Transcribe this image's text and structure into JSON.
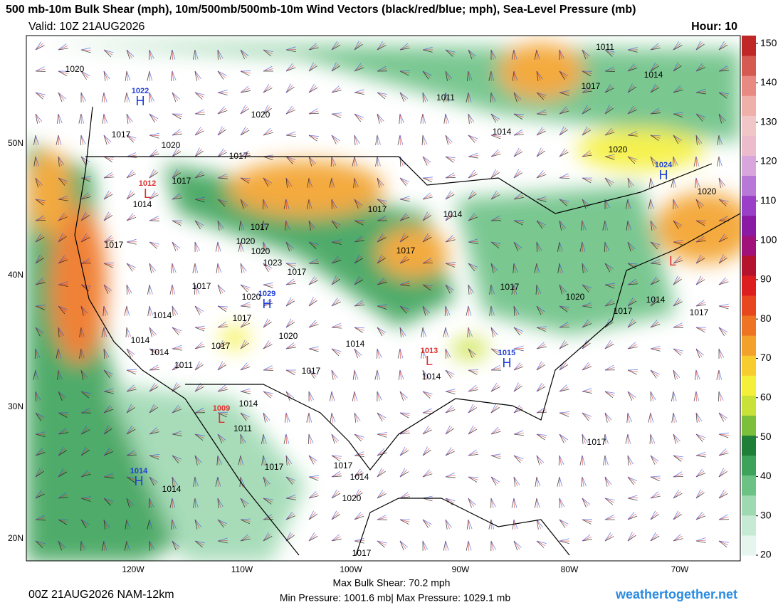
{
  "header": {
    "title": "500 mb-10m Bulk Shear (mph), 10m/500mb/500mb-10m Wind Vectors (black/red/blue; mph), Sea-Level Pressure (mb)",
    "valid": "Valid: 10Z 21AUG2026",
    "hour": "Hour: 10"
  },
  "map": {
    "lat_labels": [
      "50N",
      "40N",
      "30N",
      "20N"
    ],
    "lon_labels": [
      "120W",
      "110W",
      "100W",
      "90W",
      "80W",
      "70W"
    ],
    "centers": [
      {
        "type": "H",
        "value": "1022",
        "color": "#1f3fd8"
      },
      {
        "type": "L",
        "value": "1012",
        "color": "#e03030"
      },
      {
        "type": "H",
        "value": "1029",
        "color": "#1f3fd8"
      },
      {
        "type": "L",
        "value": "1013",
        "color": "#e03030"
      },
      {
        "type": "H",
        "value": "1015",
        "color": "#1f3fd8"
      },
      {
        "type": "L",
        "value": "1009",
        "color": "#e03030"
      },
      {
        "type": "H",
        "value": "1014",
        "color": "#1f3fd8"
      },
      {
        "type": "H",
        "value": "1024",
        "color": "#1f3fd8"
      },
      {
        "type": "L",
        "color": "#e03030"
      }
    ],
    "isobar_labels": [
      "1020",
      "1017",
      "1020",
      "1017",
      "1017",
      "1020",
      "1011",
      "1014",
      "1011",
      "1014",
      "1017",
      "1020",
      "1020",
      "1014",
      "1017",
      "1017",
      "1020",
      "1020",
      "1023",
      "1017",
      "1017",
      "1014",
      "1017",
      "1017",
      "1020",
      "1017",
      "1014",
      "1014",
      "1014",
      "1017",
      "1011",
      "1020",
      "1014",
      "1017",
      "1014",
      "1017",
      "1020",
      "1014",
      "1017",
      "1017",
      "1014",
      "1011",
      "1017",
      "1017",
      "1014",
      "1020",
      "1017",
      "1014",
      "1017"
    ]
  },
  "colorbar": {
    "lim": [
      20,
      152
    ],
    "ticks": [
      150,
      140,
      130,
      120,
      110,
      100,
      90,
      80,
      70,
      60,
      50,
      40,
      30,
      20
    ],
    "colors": [
      "#e6f6ee",
      "#c6ead3",
      "#9fd9b2",
      "#6cc185",
      "#3ea35a",
      "#1f7f36",
      "#7bbf3a",
      "#c9e23a",
      "#f4f03a",
      "#f6cc2e",
      "#f3a12a",
      "#ee7424",
      "#e8461e",
      "#dc1e1e",
      "#b5122e",
      "#a0127a",
      "#8a1aa6",
      "#9a40c8",
      "#b878d8",
      "#d8a6dc",
      "#ecbccc",
      "#f0c6c6",
      "#eeb0a8",
      "#e88a82",
      "#d55a52",
      "#c02828"
    ]
  },
  "footer": {
    "run": "00Z 21AUG2026 NAM-12km",
    "max_shear": "Max Bulk Shear:  70.2 mph",
    "pressure": "Min Pressure: 1001.6 mb| Max Pressure: 1029.1 mb",
    "site": "weathertogether.net"
  }
}
